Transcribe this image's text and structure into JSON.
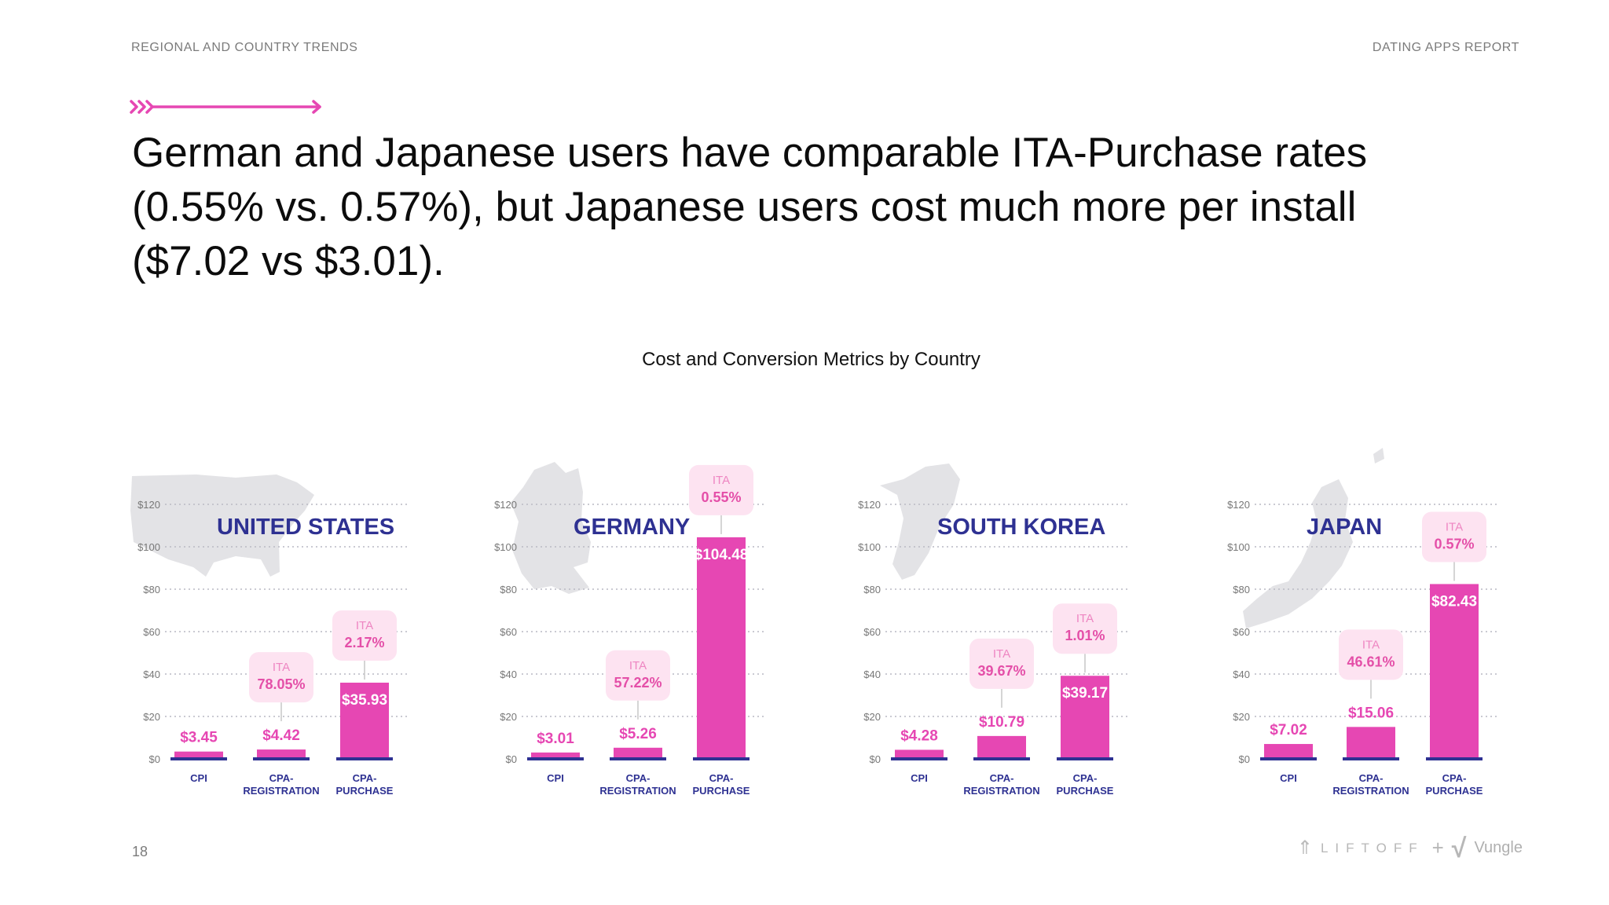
{
  "header": {
    "section": "REGIONAL AND COUNTRY TRENDS",
    "report": "DATING APPS REPORT"
  },
  "headline": "German and Japanese users have comparable ITA-Purchase rates (0.55% vs. 0.57%), but Japanese users cost much more per install ($7.02 vs $3.01).",
  "footer": {
    "page_number": "18",
    "brand_a": "LIFTOFF",
    "brand_sep": "+",
    "brand_b": "Vungle"
  },
  "colors": {
    "accent": "#e647b3",
    "navy": "#2e3192",
    "callout_bg": "#fde3f1",
    "callout_text": "#e44fa8",
    "map": "#e3e3e6",
    "grid": "#b9b9c4"
  },
  "chart_data": {
    "title": "Cost and Conversion Metrics by Country",
    "type": "bar",
    "yticks": [
      "$0",
      "$20",
      "$40",
      "$60",
      "$80",
      "$100",
      "$120"
    ],
    "ylim": [
      0,
      120
    ],
    "categories": [
      "CPI",
      "CPA-REGISTRATION",
      "CPA-PURCHASE"
    ],
    "category_lines": [
      [
        "CPI"
      ],
      [
        "CPA-",
        "REGISTRATION"
      ],
      [
        "CPA-",
        "PURCHASE"
      ]
    ],
    "callout_word": "ITA",
    "panels": [
      {
        "country": "UNITED STATES",
        "values": [
          3.45,
          4.42,
          35.93
        ],
        "labels": [
          "$3.45",
          "$4.42",
          "$35.93"
        ],
        "ita": [
          null,
          "78.05%",
          "2.17%"
        ]
      },
      {
        "country": "GERMANY",
        "values": [
          3.01,
          5.26,
          104.48
        ],
        "labels": [
          "$3.01",
          "$5.26",
          "$104.48"
        ],
        "ita": [
          null,
          "57.22%",
          "0.55%"
        ]
      },
      {
        "country": "SOUTH KOREA",
        "values": [
          4.28,
          10.79,
          39.17
        ],
        "labels": [
          "$4.28",
          "$10.79",
          "$39.17"
        ],
        "ita": [
          null,
          "39.67%",
          "1.01%"
        ]
      },
      {
        "country": "JAPAN",
        "values": [
          7.02,
          15.06,
          82.43
        ],
        "labels": [
          "$7.02",
          "$15.06",
          "$82.43"
        ],
        "ita": [
          null,
          "46.61%",
          "0.57%"
        ]
      }
    ]
  }
}
